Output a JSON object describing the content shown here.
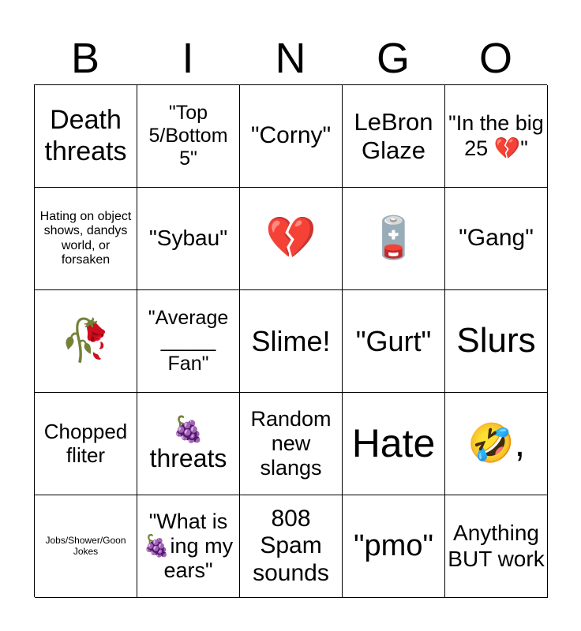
{
  "header": [
    "B",
    "I",
    "N",
    "G",
    "O"
  ],
  "cells": [
    {
      "text": "Death threats",
      "size": 34
    },
    {
      "text": "\"Top 5/Bottom 5\"",
      "size": 25
    },
    {
      "text": "\"Corny\"",
      "size": 30
    },
    {
      "text": "LeBron Glaze",
      "size": 31
    },
    {
      "text": "\"In the big 25 💔\"",
      "size": 27
    },
    {
      "text": "Hating on object shows, dandys world, or forsaken",
      "size": 16
    },
    {
      "text": "\"Sybau\"",
      "size": 28
    },
    {
      "text": "💔",
      "size": 52
    },
    {
      "text": "🪫",
      "size": 52
    },
    {
      "text": "\"Gang\"",
      "size": 30
    },
    {
      "text": "🥀",
      "size": 52
    },
    {
      "text": "\"Average\n_____\nFan\"",
      "size": 25
    },
    {
      "text": "Slime!",
      "size": 36
    },
    {
      "text": "\"Gurt\"",
      "size": 36
    },
    {
      "text": "Slurs",
      "size": 44
    },
    {
      "text": "Chopped fliter",
      "size": 26
    },
    {
      "text": "🍇\nthreats",
      "size": 32
    },
    {
      "text": "Random new slangs",
      "size": 27
    },
    {
      "text": "Hate",
      "size": 50
    },
    {
      "text": "🤣,",
      "size": 48
    },
    {
      "text": "Jobs/Shower/Goon Jokes",
      "size": 12
    },
    {
      "text": "\"What is 🍇ing my ears\"",
      "size": 27
    },
    {
      "text": "808 Spam sounds",
      "size": 30
    },
    {
      "text": "\"pmo\"",
      "size": 38
    },
    {
      "text": "Anything BUT work",
      "size": 28
    }
  ]
}
